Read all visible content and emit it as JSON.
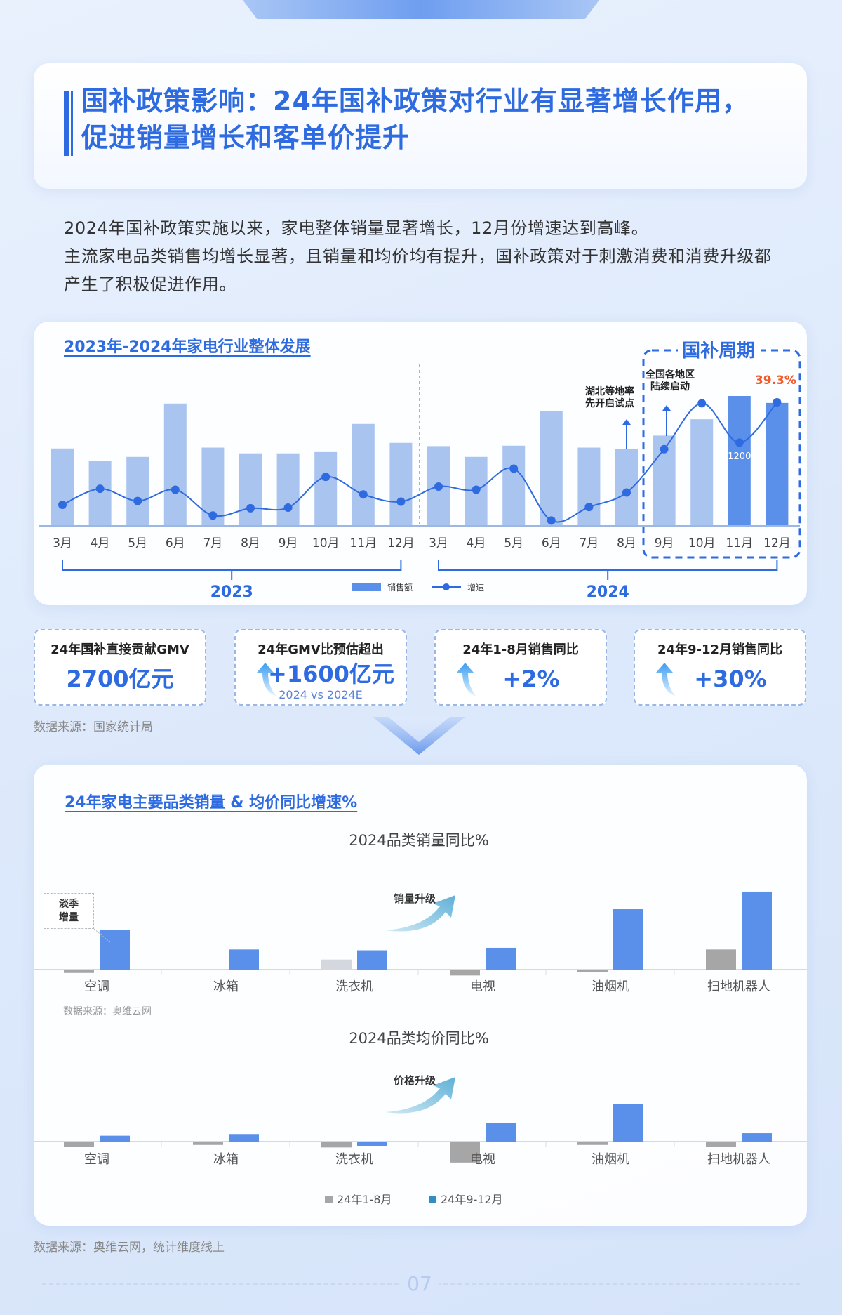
{
  "header": {
    "title_line1": "国补政策影响：24年国补政策对行业有显著增长作用，",
    "title_line2": "促进销量增长和客单价提升"
  },
  "intro": {
    "line1": "2024年国补政策实施以来，家电整体销量显著增长，12月份增速达到高峰。",
    "line2": "主流家电品类销售均增长显著，且销量和均价均有提升，国补政策对于刺激消费和消费升级都产生了积极促进作用。"
  },
  "colors": {
    "accent": "#2f6be0",
    "bar_light": "#a9c4ef",
    "bar_dark": "#5a8fea",
    "line": "#2f6be0",
    "highlight_red": "#f05a28",
    "gray": "#a6a6a6"
  },
  "chart_data": [
    {
      "type": "bar+line",
      "title": "2023年-2024年家电行业整体发展",
      "categories": [
        "3月",
        "4月",
        "5月",
        "6月",
        "7月",
        "8月",
        "9月",
        "10月",
        "11月",
        "12月",
        "3月",
        "4月",
        "5月",
        "6月",
        "7月",
        "8月",
        "9月",
        "10月",
        "11月",
        "12月"
      ],
      "year_groups": [
        {
          "label": "2023",
          "from": 0,
          "to": 9
        },
        {
          "label": "2024",
          "from": 10,
          "to": 19
        }
      ],
      "series": [
        {
          "name": "销售额",
          "type": "bar",
          "values": [
            715,
            600,
            637,
            1130,
            723,
            670,
            670,
            682,
            942,
            767,
            737,
            637,
            741,
            1058,
            723,
            713,
            834,
            985,
            1200,
            1136
          ]
        },
        {
          "name": "增速",
          "type": "line",
          "unit": "%",
          "values": [
            6.7,
            11.8,
            7.9,
            11.5,
            3.3,
            5.6,
            5.8,
            15.6,
            10.0,
            7.7,
            12.5,
            11.5,
            18.2,
            1.7,
            6.0,
            10.6,
            24.4,
            39.0,
            26.5,
            39.3
          ]
        }
      ],
      "data_labels": {
        "bar_11": "1200",
        "line_19": "39.3%"
      },
      "highlight": {
        "label": "国补周期",
        "from": 16,
        "to": 19
      },
      "annotations": [
        {
          "text_line1": "湖北等地率",
          "text_line2": "先开启试点",
          "at": 15
        },
        {
          "text_line1": "全国各地区",
          "text_line2": "陆续启动",
          "at": 16
        }
      ],
      "legend": "bottom-center",
      "grid": false
    },
    {
      "type": "bar",
      "title": "2024品类销量同比%",
      "categories": [
        "空调",
        "冰箱",
        "洗衣机",
        "电视",
        "油烟机",
        "扫地机器人"
      ],
      "series": [
        {
          "name": "24年1-8月",
          "values": [
            -4,
            0,
            12,
            -7,
            -3,
            24
          ]
        },
        {
          "name": "24年9-12月",
          "values": [
            47,
            24,
            23,
            26,
            72,
            93
          ]
        }
      ],
      "annotations": {
        "box": "淡季增量",
        "arrow": "销量升级"
      },
      "source": "数据来源：奥维云网"
    },
    {
      "type": "bar",
      "title": "2024品类均价同比%",
      "categories": [
        "空调",
        "冰箱",
        "洗衣机",
        "电视",
        "油烟机",
        "扫地机器人"
      ],
      "series": [
        {
          "name": "24年1-8月",
          "values": [
            -6,
            -4,
            -7,
            -25,
            -4,
            -6
          ]
        },
        {
          "name": "24年9-12月",
          "values": [
            7,
            9,
            -5,
            22,
            45,
            10
          ]
        }
      ],
      "annotations": {
        "arrow": "价格升级"
      },
      "legend": "bottom-center"
    }
  ],
  "section2_title": "24年家电主要品类销量 & 均价同比增速%",
  "kpis": [
    {
      "title": "24年国补直接贡献GMV",
      "value": "2700亿元",
      "arrow": false
    },
    {
      "title": "24年GMV比预估超出",
      "value": "+1600亿元",
      "sub": "2024 vs 2024E",
      "arrow": true
    },
    {
      "title": "24年1-8月销售同比",
      "value": "+2%",
      "arrow": true
    },
    {
      "title": "24年9-12月销售同比",
      "value": "+30%",
      "arrow": true
    }
  ],
  "source1": "数据来源：国家统计局",
  "source_footer": "数据来源：奥维云网，统计维度线上",
  "page_number": "07"
}
